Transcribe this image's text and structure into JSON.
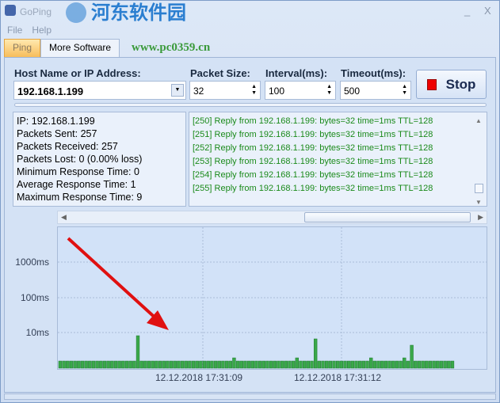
{
  "window": {
    "title": "GoPing",
    "minimize": "_",
    "close": "X"
  },
  "menu": [
    "File",
    "Help"
  ],
  "tabs": [
    {
      "label": "Ping",
      "active": true
    },
    {
      "label": "More Software",
      "active": false
    }
  ],
  "watermark": {
    "text": "河东软件园",
    "url": "www.pc0359.cn"
  },
  "form": {
    "host_label": "Host Name or IP Address:",
    "host_value": "192.168.1.199",
    "packet_label": "Packet Size:",
    "packet_value": "32",
    "interval_label": "Interval(ms):",
    "interval_value": "100",
    "timeout_label": "Timeout(ms):",
    "timeout_value": "500",
    "stop_label": "Stop"
  },
  "stats": [
    "IP: 192.168.1.199",
    "Packets Sent: 257",
    "Packets Received: 257",
    "Packets Lost: 0 (0.00% loss)",
    "Minimum Response Time: 0",
    "Average Response Time: 1",
    "Maximum Response Time: 9"
  ],
  "log": [
    "[250] Reply from 192.168.1.199: bytes=32 time=1ms TTL=128",
    "[251] Reply from 192.168.1.199: bytes=32 time=1ms TTL=128",
    "[252] Reply from 192.168.1.199: bytes=32 time=1ms TTL=128",
    "[253] Reply from 192.168.1.199: bytes=32 time=1ms TTL=128",
    "[254] Reply from 192.168.1.199: bytes=32 time=1ms TTL=128",
    "[255] Reply from 192.168.1.199: bytes=32 time=1ms TTL=128"
  ],
  "colors": {
    "bar": "#3aa84a",
    "log_text": "#1a8a1a",
    "arrow": "#e01010"
  },
  "chart_data": {
    "type": "bar",
    "y_ticks": [
      "1000ms",
      "100ms",
      "10ms"
    ],
    "x_ticks": [
      "12.12.2018 17:31:09",
      "12.12.2018 17:31:12"
    ],
    "values_ms": [
      1,
      1,
      1,
      1,
      1,
      1,
      1,
      1,
      1,
      1,
      1,
      1,
      1,
      1,
      1,
      1,
      1,
      1,
      1,
      1,
      1,
      9,
      1,
      1,
      1,
      1,
      1,
      1,
      1,
      1,
      1,
      1,
      1,
      1,
      1,
      1,
      1,
      1,
      1,
      1,
      1,
      1,
      1,
      1,
      1,
      1,
      1,
      2,
      1,
      1,
      1,
      1,
      1,
      1,
      1,
      1,
      1,
      1,
      1,
      1,
      1,
      1,
      1,
      1,
      2,
      1,
      1,
      1,
      1,
      8,
      1,
      1,
      1,
      1,
      1,
      1,
      1,
      1,
      1,
      1,
      1,
      1,
      1,
      1,
      2,
      1,
      1,
      1,
      1,
      1,
      1,
      1,
      1,
      2,
      1,
      6,
      1,
      1,
      1,
      1,
      1,
      1,
      1,
      1,
      1,
      1,
      1
    ]
  }
}
